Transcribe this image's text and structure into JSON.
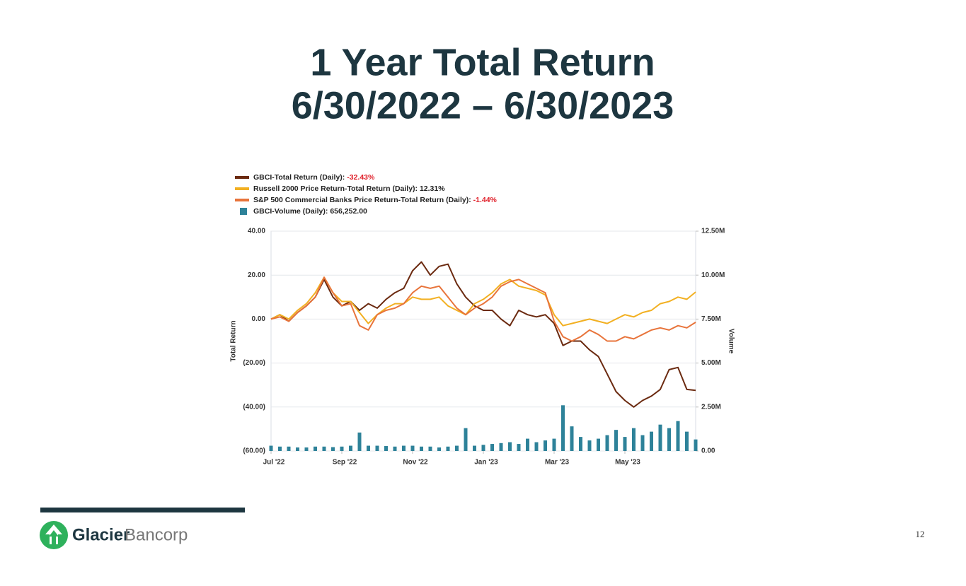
{
  "header": {
    "title": [
      "1 Year Total Return",
      "6/30/2022 – 6/30/2023"
    ]
  },
  "chart_data": {
    "type": "line",
    "y_label": "Total Return",
    "y2_label": "Volume",
    "x": [
      0,
      0.25,
      0.5,
      0.75,
      1,
      1.25,
      1.5,
      1.75,
      2,
      2.25,
      2.5,
      2.75,
      3,
      3.25,
      3.5,
      3.75,
      4,
      4.25,
      4.5,
      4.75,
      5,
      5.25,
      5.5,
      5.75,
      6,
      6.25,
      6.5,
      6.75,
      7,
      7.25,
      7.5,
      7.75,
      8,
      8.25,
      8.5,
      8.75,
      9,
      9.25,
      9.5,
      9.75,
      10,
      10.25,
      10.5,
      10.75,
      11,
      11.25,
      11.5,
      11.75,
      12
    ],
    "xlim": [
      0,
      12
    ],
    "xticks": [
      {
        "value": 0,
        "label": "Jul '22"
      },
      {
        "value": 2,
        "label": "Sep '22"
      },
      {
        "value": 4,
        "label": "Nov '22"
      },
      {
        "value": 6,
        "label": "Jan '23"
      },
      {
        "value": 8,
        "label": "Mar '23"
      },
      {
        "value": 10,
        "label": "May '23"
      }
    ],
    "ylim": [
      -60,
      40
    ],
    "yticks": [
      {
        "value": 40,
        "label": "40.00"
      },
      {
        "value": 20,
        "label": "20.00"
      },
      {
        "value": 0,
        "label": "0.00"
      },
      {
        "value": -20,
        "label": "(20.00)"
      },
      {
        "value": -40,
        "label": "(40.00)"
      },
      {
        "value": -60,
        "label": "(60.00)"
      }
    ],
    "y2lim": [
      0,
      12500000
    ],
    "y2ticks": [
      {
        "value": 12500000,
        "label": "12.50M"
      },
      {
        "value": 10000000,
        "label": "10.00M"
      },
      {
        "value": 7500000,
        "label": "7.50M"
      },
      {
        "value": 5000000,
        "label": "5.00M"
      },
      {
        "value": 2500000,
        "label": "2.50M"
      },
      {
        "value": 0,
        "label": "0.00"
      }
    ],
    "grid": true,
    "series": [
      {
        "name": "GBCI-Total Return (Daily):",
        "color": "#6b2a10",
        "summary": {
          "value": -32.43,
          "label": "-32.43%"
        },
        "summary_color": "#e0202a",
        "values": [
          0,
          2,
          -1,
          3,
          6,
          10,
          18,
          10,
          6,
          8,
          4,
          7,
          5,
          9,
          12,
          14,
          22,
          26,
          20,
          24,
          25,
          16,
          10,
          6,
          4,
          4,
          0,
          -3,
          4,
          2,
          1,
          2,
          -2,
          -12,
          -10,
          -10,
          -14,
          -17,
          -25,
          -33,
          -37,
          -40,
          -37,
          -35,
          -32,
          -23,
          -22,
          -32,
          -32.43
        ]
      },
      {
        "name": "Russell 2000 Price Return-Total Return (Daily):",
        "color": "#f2b022",
        "summary": {
          "value": 12.31,
          "label": "12.31%"
        },
        "summary_color": "#222222",
        "values": [
          0,
          2,
          0,
          4,
          7,
          12,
          19,
          12,
          8,
          8,
          3,
          -2,
          2,
          5,
          7,
          7,
          10,
          9,
          9,
          10,
          6,
          4,
          2,
          7,
          9,
          12,
          16,
          18,
          15,
          14,
          13,
          11,
          2,
          -3,
          -2,
          -1,
          0,
          -1,
          -2,
          0,
          2,
          1,
          3,
          4,
          7,
          8,
          10,
          9,
          12.31
        ]
      },
      {
        "name": "S&P 500 Commercial Banks Price Return-Total Return (Daily):",
        "color": "#e8743b",
        "summary": {
          "value": -1.44,
          "label": "-1.44%"
        },
        "summary_color": "#e0202a",
        "values": [
          0,
          1,
          -1,
          3,
          6,
          10,
          19,
          12,
          6,
          7,
          -3,
          -5,
          2,
          4,
          5,
          7,
          12,
          15,
          14,
          15,
          10,
          5,
          2,
          5,
          7,
          10,
          15,
          17,
          18,
          16,
          14,
          12,
          -1,
          -8,
          -10,
          -8,
          -5,
          -7,
          -10,
          -10,
          -8,
          -9,
          -7,
          -5,
          -4,
          -5,
          -3,
          -4,
          -1.44
        ]
      },
      {
        "name": "GBCI-Volume (Daily):",
        "color": "#2e8299",
        "axis": "y2",
        "type": "bar",
        "summary": {
          "value": 656252,
          "label": "656,252.00"
        },
        "summary_color": "#222222",
        "values": [
          300000,
          250000,
          250000,
          200000,
          200000,
          250000,
          250000,
          220000,
          250000,
          300000,
          1050000,
          300000,
          300000,
          280000,
          250000,
          300000,
          300000,
          250000,
          250000,
          200000,
          250000,
          300000,
          1300000,
          300000,
          350000,
          400000,
          450000,
          500000,
          400000,
          700000,
          500000,
          600000,
          700000,
          2600000,
          1400000,
          800000,
          600000,
          700000,
          900000,
          1200000,
          800000,
          1300000,
          900000,
          1100000,
          1500000,
          1300000,
          1700000,
          1100000,
          656252
        ]
      }
    ]
  },
  "footer": {
    "brand_bold": "Glacier",
    "brand_light": "Bancorp",
    "page_number": "12"
  }
}
